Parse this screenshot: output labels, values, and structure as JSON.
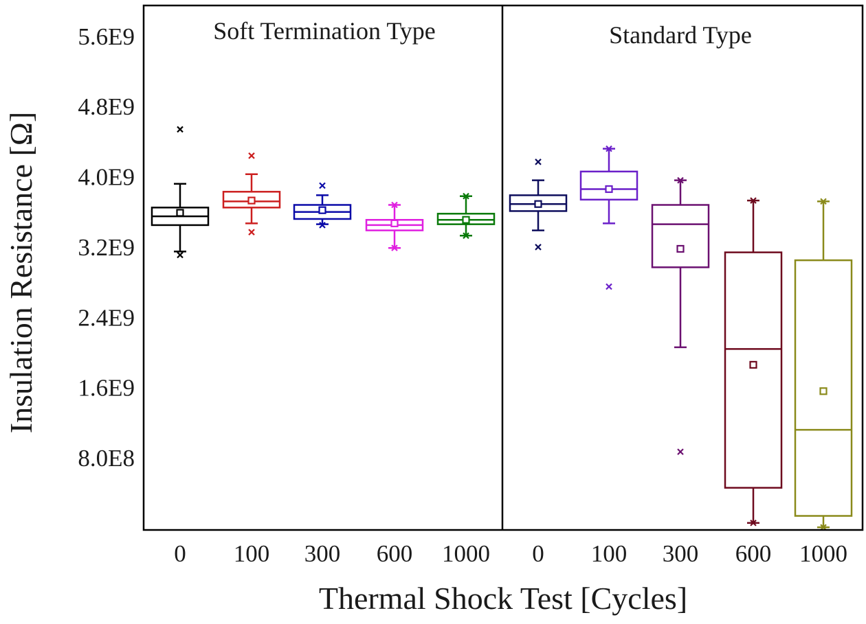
{
  "chart_data": {
    "type": "box",
    "xlabel": "Thermal Shock Test [Cycles]",
    "ylabel": "Insulation Resistance [Ω]",
    "ylim": [
      -20000000,
      5950000000
    ],
    "yticks": [
      {
        "value": 800000000,
        "label": "8.0E8"
      },
      {
        "value": 1600000000,
        "label": "1.6E9"
      },
      {
        "value": 2400000000,
        "label": "2.4E9"
      },
      {
        "value": 3200000000,
        "label": "3.2E9"
      },
      {
        "value": 4000000000,
        "label": "4.0E9"
      },
      {
        "value": 4800000000,
        "label": "4.8E9"
      },
      {
        "value": 5600000000,
        "label": "5.6E9"
      }
    ],
    "grid": false,
    "panels": [
      {
        "title": "Soft Termination Type",
        "categories": [
          "0",
          "100",
          "300",
          "600",
          "1000"
        ],
        "boxes": [
          {
            "category": "0",
            "color": "#000000",
            "q1": 3450000000,
            "median": 3550000000,
            "q3": 3650000000,
            "mean": 3590000000,
            "whisker_low": 3150000000,
            "whisker_high": 3920000000,
            "outliers": [
              4540000000,
              3110000000
            ]
          },
          {
            "category": "100",
            "color": "#cc1f1f",
            "q1": 3650000000,
            "median": 3720000000,
            "q3": 3830000000,
            "mean": 3730000000,
            "whisker_low": 3470000000,
            "whisker_high": 4030000000,
            "outliers": [
              4240000000,
              3370000000
            ]
          },
          {
            "category": "300",
            "color": "#0a0aa8",
            "q1": 3520000000,
            "median": 3600000000,
            "q3": 3680000000,
            "mean": 3620000000,
            "whisker_low": 3460000000,
            "whisker_high": 3790000000,
            "outliers": [
              3900000000,
              3450000000
            ]
          },
          {
            "category": "600",
            "color": "#e020e0",
            "q1": 3390000000,
            "median": 3450000000,
            "q3": 3510000000,
            "mean": 3470000000,
            "whisker_low": 3190000000,
            "whisker_high": 3680000000,
            "outliers": [
              3680000000,
              3190000000
            ]
          },
          {
            "category": "1000",
            "color": "#0a7a0a",
            "q1": 3460000000,
            "median": 3510000000,
            "q3": 3580000000,
            "mean": 3510000000,
            "whisker_low": 3330000000,
            "whisker_high": 3780000000,
            "outliers": [
              3780000000,
              3330000000
            ]
          }
        ]
      },
      {
        "title": "Standard Type",
        "categories": [
          "0",
          "100",
          "300",
          "600",
          "1000"
        ],
        "boxes": [
          {
            "category": "0",
            "color": "#0d0d5c",
            "q1": 3610000000,
            "median": 3690000000,
            "q3": 3790000000,
            "mean": 3690000000,
            "whisker_low": 3390000000,
            "whisker_high": 3960000000,
            "outliers": [
              4170000000,
              3200000000
            ]
          },
          {
            "category": "100",
            "color": "#6a1fc9",
            "q1": 3740000000,
            "median": 3860000000,
            "q3": 4060000000,
            "mean": 3860000000,
            "whisker_low": 3470000000,
            "whisker_high": 4320000000,
            "outliers": [
              4320000000,
              2750000000
            ]
          },
          {
            "category": "300",
            "color": "#6b1070",
            "q1": 2970000000,
            "median": 3460000000,
            "q3": 3680000000,
            "mean": 3180000000,
            "whisker_low": 2060000000,
            "whisker_high": 3960000000,
            "outliers": [
              3960000000,
              870000000
            ]
          },
          {
            "category": "600",
            "color": "#6e0a1e",
            "q1": 460000000,
            "median": 2040000000,
            "q3": 3140000000,
            "mean": 1860000000,
            "whisker_low": 60000000,
            "whisker_high": 3730000000,
            "outliers": [
              3730000000,
              60000000
            ]
          },
          {
            "category": "1000",
            "color": "#8a8a1a",
            "q1": 140000000,
            "median": 1120000000,
            "q3": 3050000000,
            "mean": 1560000000,
            "whisker_low": 10000000,
            "whisker_high": 3720000000,
            "outliers": [
              3720000000,
              10000000
            ]
          }
        ]
      }
    ]
  }
}
